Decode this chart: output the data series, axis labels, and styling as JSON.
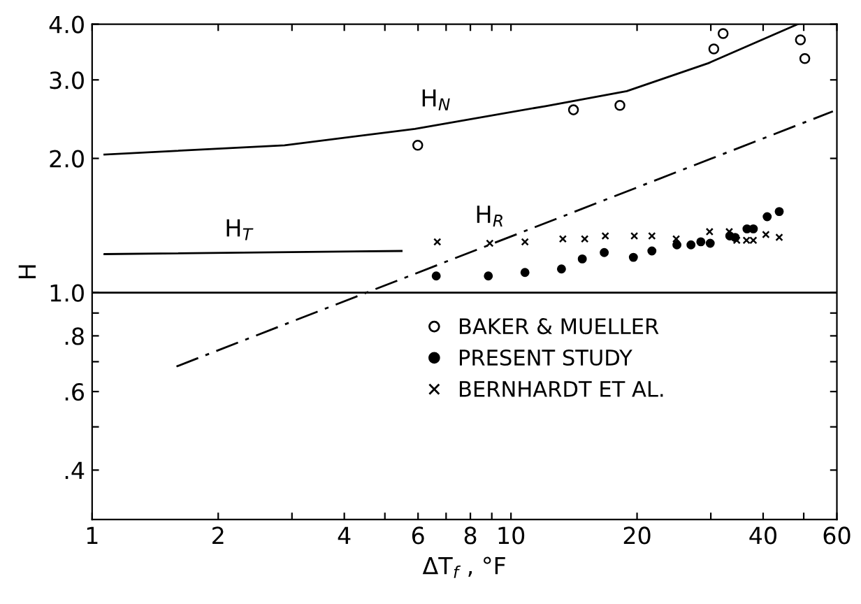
{
  "chart_data": {
    "type": "scatter",
    "xlabel": "ΔT$_{f}$ , °F",
    "ylabel": "H",
    "log": "xy",
    "xlim": [
      1,
      60
    ],
    "ylim": [
      0.31,
      4.0
    ],
    "xticks": [
      1,
      2,
      {
        "value": 3,
        "label": null
      },
      4,
      {
        "value": 5,
        "label": null
      },
      6,
      {
        "value": 7,
        "label": null
      },
      8,
      {
        "value": 9,
        "label": null
      },
      10,
      20,
      {
        "value": 30,
        "label": null
      },
      40,
      {
        "value": 50,
        "label": null
      },
      60
    ],
    "yticks": [
      {
        "value": 0.4,
        "label": ".4"
      },
      {
        "value": 0.5,
        "label": null
      },
      {
        "value": 0.6,
        "label": ".6"
      },
      {
        "value": 0.7,
        "label": null
      },
      {
        "value": 0.8,
        "label": ".8"
      },
      {
        "value": 0.9,
        "label": null
      },
      {
        "value": 1.0,
        "label": "1.0"
      },
      {
        "value": 2.0,
        "label": "2.0"
      },
      {
        "value": 3.0,
        "label": "3.0"
      },
      {
        "value": 4.0,
        "label": "4.0"
      }
    ],
    "grid": false,
    "legend": "bottom",
    "ref_lines": [
      {
        "axis": "y",
        "value": 1.0,
        "color": "#000000",
        "line_style": "solid"
      }
    ],
    "series": [
      {
        "name": "BAKER & MUELLER",
        "color": "#000000",
        "marker": "open circle",
        "x": [
          5.99,
          14.1,
          18.2,
          30.5,
          32.1,
          49.1,
          50.3
        ],
        "values": [
          2.14,
          2.57,
          2.63,
          3.52,
          3.81,
          3.69,
          3.35
        ]
      },
      {
        "name": "PRESENT STUDY",
        "color": "#000000",
        "marker": "circle",
        "x": [
          6.63,
          8.83,
          10.8,
          13.2,
          14.8,
          16.7,
          19.6,
          21.7,
          24.9,
          26.9,
          28.4,
          29.9,
          33.3,
          34.3,
          36.6,
          37.9,
          40.9,
          43.7
        ],
        "values": [
          1.09,
          1.09,
          1.11,
          1.13,
          1.19,
          1.23,
          1.2,
          1.24,
          1.28,
          1.28,
          1.3,
          1.29,
          1.34,
          1.33,
          1.39,
          1.39,
          1.48,
          1.52
        ]
      },
      {
        "name": "BERNHARDT ET AL.",
        "color": "#000000",
        "marker": "cross",
        "x": [
          6.67,
          8.9,
          10.8,
          13.3,
          15.0,
          16.8,
          19.7,
          21.7,
          24.8,
          29.8,
          33.2,
          34.6,
          36.5,
          37.9,
          40.6,
          43.7
        ],
        "values": [
          1.3,
          1.29,
          1.3,
          1.32,
          1.32,
          1.34,
          1.34,
          1.34,
          1.32,
          1.37,
          1.37,
          1.31,
          1.31,
          1.31,
          1.35,
          1.33
        ]
      },
      {
        "name": "H$_{N}$",
        "type": "line",
        "line_style": "solid",
        "color": "#000000",
        "x": [
          1.07,
          2.88,
          5.9,
          12.1,
          18.9,
          29.6,
          48.4
        ],
        "values": [
          2.04,
          2.14,
          2.33,
          2.62,
          2.83,
          3.27,
          4.0
        ]
      },
      {
        "name": "H$_{T}$",
        "type": "line",
        "line_style": "solid",
        "color": "#000000",
        "x": [
          1.07,
          5.48
        ],
        "values": [
          1.22,
          1.24
        ]
      },
      {
        "name": "H$_{R}$",
        "type": "line",
        "line_style": "dashdot",
        "color": "#000000",
        "x": [
          1.59,
          58.7
        ],
        "values": [
          0.683,
          2.55
        ]
      }
    ]
  }
}
